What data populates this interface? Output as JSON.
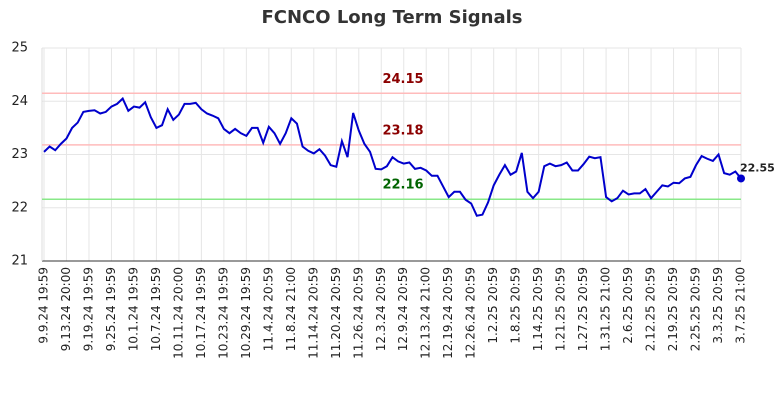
{
  "chart_data": {
    "type": "line",
    "title": "FCNCO Long Term Signals",
    "categories": [
      "9.9.24 19:59",
      null,
      null,
      null,
      "9.13.24 20:00",
      null,
      null,
      null,
      "9.19.24 19:59",
      null,
      null,
      null,
      "9.25.24 19:59",
      null,
      null,
      null,
      "10.1.24 19:59",
      null,
      null,
      null,
      "10.7.24 19:59",
      null,
      null,
      null,
      "10.11.24 20:00",
      null,
      null,
      null,
      "10.17.24 19:59",
      null,
      null,
      null,
      "10.23.24 19:59",
      null,
      null,
      null,
      "10.29.24 19:59",
      null,
      null,
      null,
      "11.4.24 20:59",
      null,
      null,
      null,
      "11.8.24 21:00",
      null,
      null,
      null,
      "11.14.24 20:59",
      null,
      null,
      null,
      "11.20.24 20:59",
      null,
      null,
      null,
      "11.26.24 20:59",
      null,
      null,
      null,
      "12.3.24 20:59",
      null,
      null,
      null,
      "12.9.24 20:59",
      null,
      null,
      null,
      "12.13.24 21:00",
      null,
      null,
      null,
      "12.19.24 20:59",
      null,
      null,
      null,
      "12.26.24 20:59",
      null,
      null,
      null,
      "1.2.25 20:59",
      null,
      null,
      null,
      "1.8.25 20:59",
      null,
      null,
      null,
      "1.14.25 20:59",
      null,
      null,
      null,
      "1.21.25 20:59",
      null,
      null,
      null,
      "1.27.25 20:59",
      null,
      null,
      null,
      "1.31.25 21:00",
      null,
      null,
      null,
      "2.6.25 20:59",
      null,
      null,
      null,
      "2.12.25 20:59",
      null,
      null,
      null,
      "2.19.25 20:59",
      null,
      null,
      null,
      "2.25.25 20:59",
      null,
      null,
      null,
      "3.3.25 20:59",
      null,
      null,
      null,
      "3.7.25 21:00"
    ],
    "values": [
      23.05,
      23.15,
      23.08,
      23.2,
      23.3,
      23.5,
      23.6,
      23.8,
      23.82,
      23.83,
      23.77,
      23.8,
      23.9,
      23.95,
      24.05,
      23.82,
      23.9,
      23.88,
      23.98,
      23.7,
      23.5,
      23.55,
      23.85,
      23.65,
      23.75,
      23.95,
      23.95,
      23.97,
      23.85,
      23.77,
      23.73,
      23.68,
      23.48,
      23.4,
      23.48,
      23.4,
      23.35,
      23.5,
      23.5,
      23.22,
      23.52,
      23.4,
      23.2,
      23.4,
      23.68,
      23.58,
      23.15,
      23.07,
      23.02,
      23.1,
      22.98,
      22.8,
      22.77,
      23.25,
      22.95,
      23.78,
      23.45,
      23.2,
      23.05,
      22.73,
      22.72,
      22.78,
      22.95,
      22.87,
      22.83,
      22.85,
      22.73,
      22.75,
      22.7,
      22.6,
      22.6,
      22.4,
      22.2,
      22.3,
      22.3,
      22.15,
      22.08,
      21.85,
      21.87,
      22.1,
      22.42,
      22.62,
      22.8,
      22.62,
      22.68,
      23.03,
      22.3,
      22.18,
      22.3,
      22.78,
      22.83,
      22.78,
      22.8,
      22.85,
      22.7,
      22.7,
      22.82,
      22.96,
      22.93,
      22.95,
      22.2,
      22.12,
      22.18,
      22.32,
      22.25,
      22.27,
      22.27,
      22.35,
      22.18,
      22.3,
      22.42,
      22.4,
      22.47,
      22.46,
      22.55,
      22.58,
      22.8,
      22.97,
      22.92,
      22.88,
      23.0,
      22.65,
      22.62,
      22.68,
      22.55
    ],
    "color": "#0000cc",
    "ylim": [
      21,
      25
    ],
    "yticks": [
      21,
      22,
      23,
      24,
      25
    ],
    "grid": true,
    "lines": [
      {
        "value": 24.15,
        "color": "#ffbbbb",
        "label_color": "#8b0000"
      },
      {
        "value": 23.18,
        "color": "#ffbbbb",
        "label_color": "#8b0000"
      },
      {
        "value": 22.16,
        "color": "#88e888",
        "label_color": "#006400"
      }
    ]
  }
}
